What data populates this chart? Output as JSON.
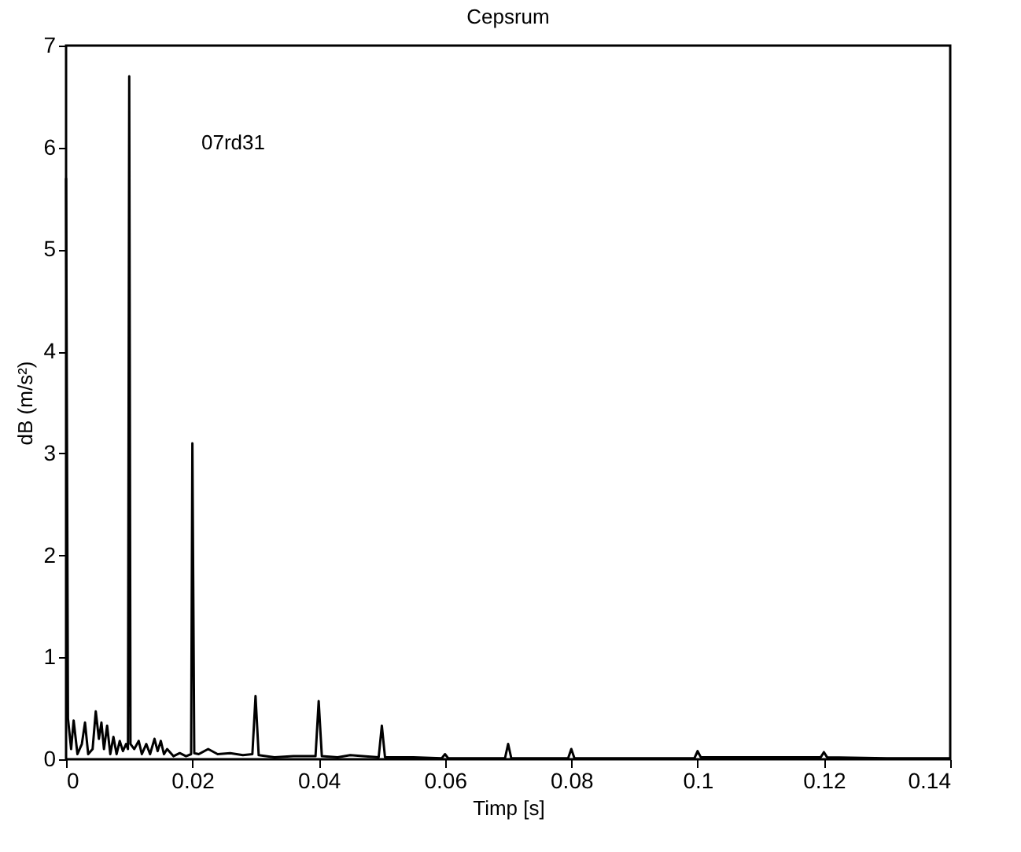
{
  "chart_data": {
    "type": "line",
    "title": "Cepsrum",
    "xlabel": "Timp [s]",
    "ylabel": "dB (m/s²)",
    "annotations": [
      "07rd31"
    ],
    "x": [
      0,
      0.0003,
      0.0008,
      0.0012,
      0.0018,
      0.0025,
      0.003,
      0.0035,
      0.0042,
      0.0047,
      0.0052,
      0.0056,
      0.006,
      0.0065,
      0.007,
      0.0075,
      0.008,
      0.0085,
      0.009,
      0.0095,
      0.0098,
      0.01,
      0.0102,
      0.0108,
      0.0115,
      0.012,
      0.0127,
      0.0133,
      0.014,
      0.0145,
      0.015,
      0.0155,
      0.016,
      0.017,
      0.018,
      0.019,
      0.0198,
      0.02,
      0.0203,
      0.021,
      0.0225,
      0.024,
      0.026,
      0.028,
      0.0295,
      0.03,
      0.0305,
      0.033,
      0.036,
      0.0395,
      0.04,
      0.0405,
      0.043,
      0.045,
      0.047,
      0.0495,
      0.05,
      0.0505,
      0.055,
      0.0595,
      0.06,
      0.0605,
      0.065,
      0.0695,
      0.07,
      0.0705,
      0.0795,
      0.08,
      0.0805,
      0.09,
      0.0995,
      0.1,
      0.1005,
      0.11,
      0.1195,
      0.12,
      0.1205,
      0.13,
      0.14
    ],
    "series": [
      {
        "color": "#000000",
        "values": [
          5.7,
          0.4,
          0.1,
          0.38,
          0.05,
          0.15,
          0.36,
          0.05,
          0.1,
          0.47,
          0.2,
          0.36,
          0.1,
          0.33,
          0.05,
          0.22,
          0.05,
          0.18,
          0.08,
          0.15,
          0.1,
          6.7,
          0.15,
          0.1,
          0.18,
          0.05,
          0.15,
          0.05,
          0.2,
          0.08,
          0.18,
          0.05,
          0.1,
          0.03,
          0.06,
          0.03,
          0.05,
          3.1,
          0.06,
          0.05,
          0.1,
          0.05,
          0.06,
          0.04,
          0.05,
          0.62,
          0.04,
          0.02,
          0.03,
          0.03,
          0.57,
          0.03,
          0.02,
          0.04,
          0.03,
          0.02,
          0.33,
          0.02,
          0.02,
          0.01,
          0.05,
          0.01,
          0.01,
          0.01,
          0.15,
          0.01,
          0.01,
          0.1,
          0.01,
          0.01,
          0.01,
          0.08,
          0.02,
          0.02,
          0.02,
          0.07,
          0.02,
          0.01,
          0.01
        ]
      }
    ],
    "xlim": [
      0,
      0.14
    ],
    "xticks": [
      0,
      0.02,
      0.04,
      0.06,
      0.08,
      0.1,
      0.12,
      0.14
    ],
    "ylim": [
      0,
      7
    ],
    "yticks": [
      0,
      1,
      2,
      3,
      4,
      5,
      6,
      7
    ],
    "grid": false,
    "line_style": "solid"
  }
}
